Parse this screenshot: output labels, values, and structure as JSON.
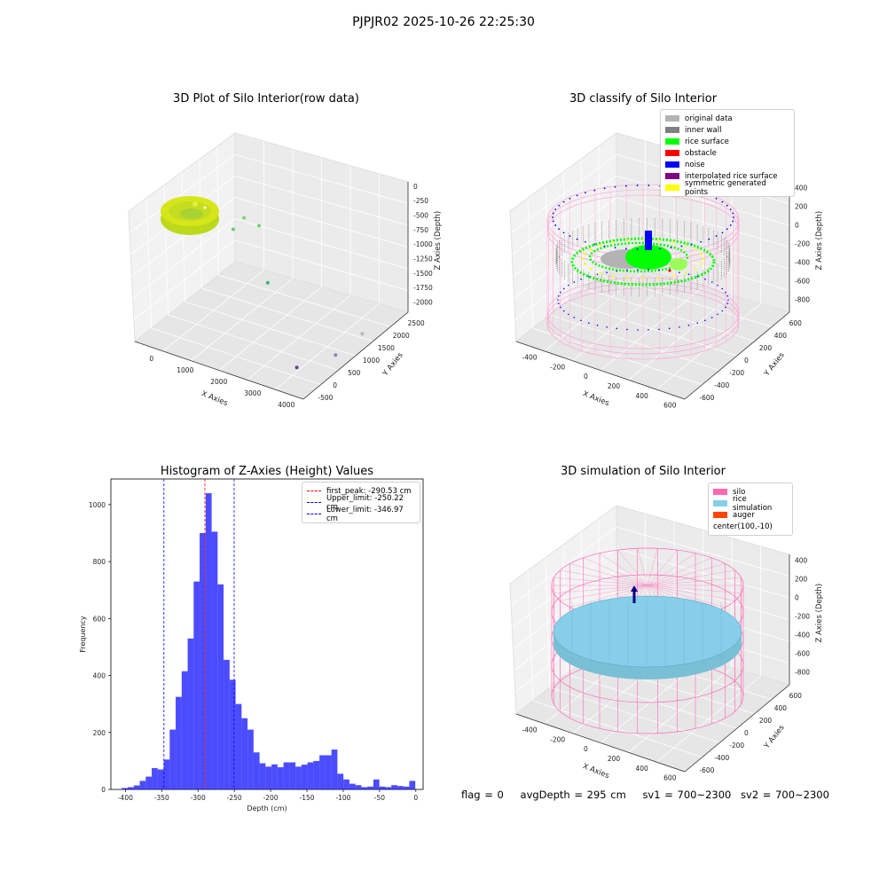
{
  "suptitle": "PJPJR02 2025-10-26 22:25:30",
  "chart_data": [
    {
      "type": "scatter3d",
      "title": "3D Plot of Silo Interior(row data)",
      "xlabel": "X Axies",
      "ylabel": "Y Axies",
      "zlabel": "Z Axies (Depth)",
      "xticks": [
        "0",
        "1000",
        "2000",
        "3000",
        "4000"
      ],
      "yticks": [
        "-500",
        "0",
        "500",
        "1000",
        "1500",
        "2000",
        "2500"
      ],
      "zticks": [
        "0",
        "-250",
        "-500",
        "-750",
        "-1000",
        "-1250",
        "-1500",
        "-1750",
        "-2000"
      ],
      "xlim": [
        -500,
        4000
      ],
      "ylim": [
        -500,
        2500
      ],
      "zlim": [
        -2200,
        100
      ],
      "outliers": [
        {
          "x": 900,
          "y": 1200,
          "z": -500,
          "color": "#7dd870"
        },
        {
          "x": 1300,
          "y": 1200,
          "z": -550,
          "color": "#72d36c"
        },
        {
          "x": 700,
          "y": 1100,
          "z": -700,
          "color": "#6dcf6a"
        },
        {
          "x": 1800,
          "y": 900,
          "z": -1300,
          "color": "#35b779"
        },
        {
          "x": 3700,
          "y": 1600,
          "z": -2100,
          "color": "#b8b8b8"
        },
        {
          "x": 3700,
          "y": 800,
          "z": -2100,
          "color": "#8b82c2"
        },
        {
          "x": 3200,
          "y": 200,
          "z": -2150,
          "color": "#6a3d9a"
        }
      ]
    },
    {
      "type": "scatter3d",
      "title": "3D classify of Silo Interior",
      "xlabel": "X Axies",
      "ylabel": "Y Axies",
      "zlabel": "Z Axies (Depth)",
      "xticks": [
        "-400",
        "-200",
        "0",
        "200",
        "400",
        "600"
      ],
      "yticks": [
        "-600",
        "-400",
        "-200",
        "0",
        "200",
        "400",
        "600"
      ],
      "zticks": [
        "400",
        "200",
        "0",
        "-200",
        "-400",
        "-600",
        "-800"
      ],
      "legend": [
        {
          "label": "original data",
          "color": "#b3b3b3"
        },
        {
          "label": "inner wall",
          "color": "#808080"
        },
        {
          "label": "rice surface",
          "color": "#00ff00"
        },
        {
          "label": "obstacle",
          "color": "#ff0000"
        },
        {
          "label": "noise",
          "color": "#0000ff"
        },
        {
          "label": "interpolated rice surface",
          "color": "#800080"
        },
        {
          "label": "symmetric generated points",
          "color": "#ffff00"
        }
      ]
    },
    {
      "type": "bar",
      "title": "Histogram of Z-Axies (Height) Values",
      "xlabel": "Depth (cm)",
      "ylabel": "Frequency",
      "xlim": [
        -420,
        10
      ],
      "ylim": [
        0,
        1090
      ],
      "xticks": [
        "-400",
        "-350",
        "-300",
        "-250",
        "-200",
        "-150",
        "-100",
        "-50",
        "0"
      ],
      "yticks": [
        "0",
        "200",
        "400",
        "600",
        "800",
        "1000"
      ],
      "bar_color": "#0000ff",
      "bin_width": 8.25,
      "bin_start": -405,
      "values": [
        5,
        8,
        14,
        30,
        45,
        75,
        70,
        105,
        210,
        325,
        415,
        530,
        730,
        900,
        1040,
        905,
        720,
        455,
        385,
        300,
        250,
        210,
        130,
        92,
        80,
        88,
        78,
        95,
        95,
        80,
        87,
        95,
        100,
        120,
        120,
        140,
        55,
        35,
        20,
        15,
        8,
        10,
        35,
        10,
        8,
        15,
        12,
        10,
        30
      ],
      "lines": [
        {
          "x": -290.53,
          "label": "first_peak: -290.53 cm",
          "color": "#ff0000"
        },
        {
          "x": -250.22,
          "label": "Upper_limit: -250.22 cm",
          "color": "#0000ff"
        },
        {
          "x": -346.97,
          "label": "Lower_limit: -346.97 cm",
          "color": "#0000ff"
        }
      ]
    },
    {
      "type": "surface3d",
      "title": "3D simulation of Silo Interior",
      "xlabel": "X Axies",
      "ylabel": "Y Axies",
      "zlabel": "Z Axies (Depth)",
      "xticks": [
        "-400",
        "-200",
        "0",
        "200",
        "400",
        "600"
      ],
      "yticks": [
        "-600",
        "-400",
        "-200",
        "0",
        "200",
        "400",
        "600"
      ],
      "zticks": [
        "400",
        "200",
        "0",
        "-200",
        "-400",
        "-600",
        "-800"
      ],
      "legend": [
        {
          "label": "silo",
          "color": "#ff69b4"
        },
        {
          "label": "rice simulation",
          "color": "#87ceeb"
        },
        {
          "label": "auger",
          "color": "#ff4500"
        },
        {
          "label": "center(100,-10)",
          "color": ""
        }
      ]
    }
  ],
  "status": {
    "flag": "flag = 0",
    "avg": "avgDepth = 295 cm",
    "sv1": "sv1 = 700~2300",
    "sv2": "sv2 = 700~2300"
  }
}
